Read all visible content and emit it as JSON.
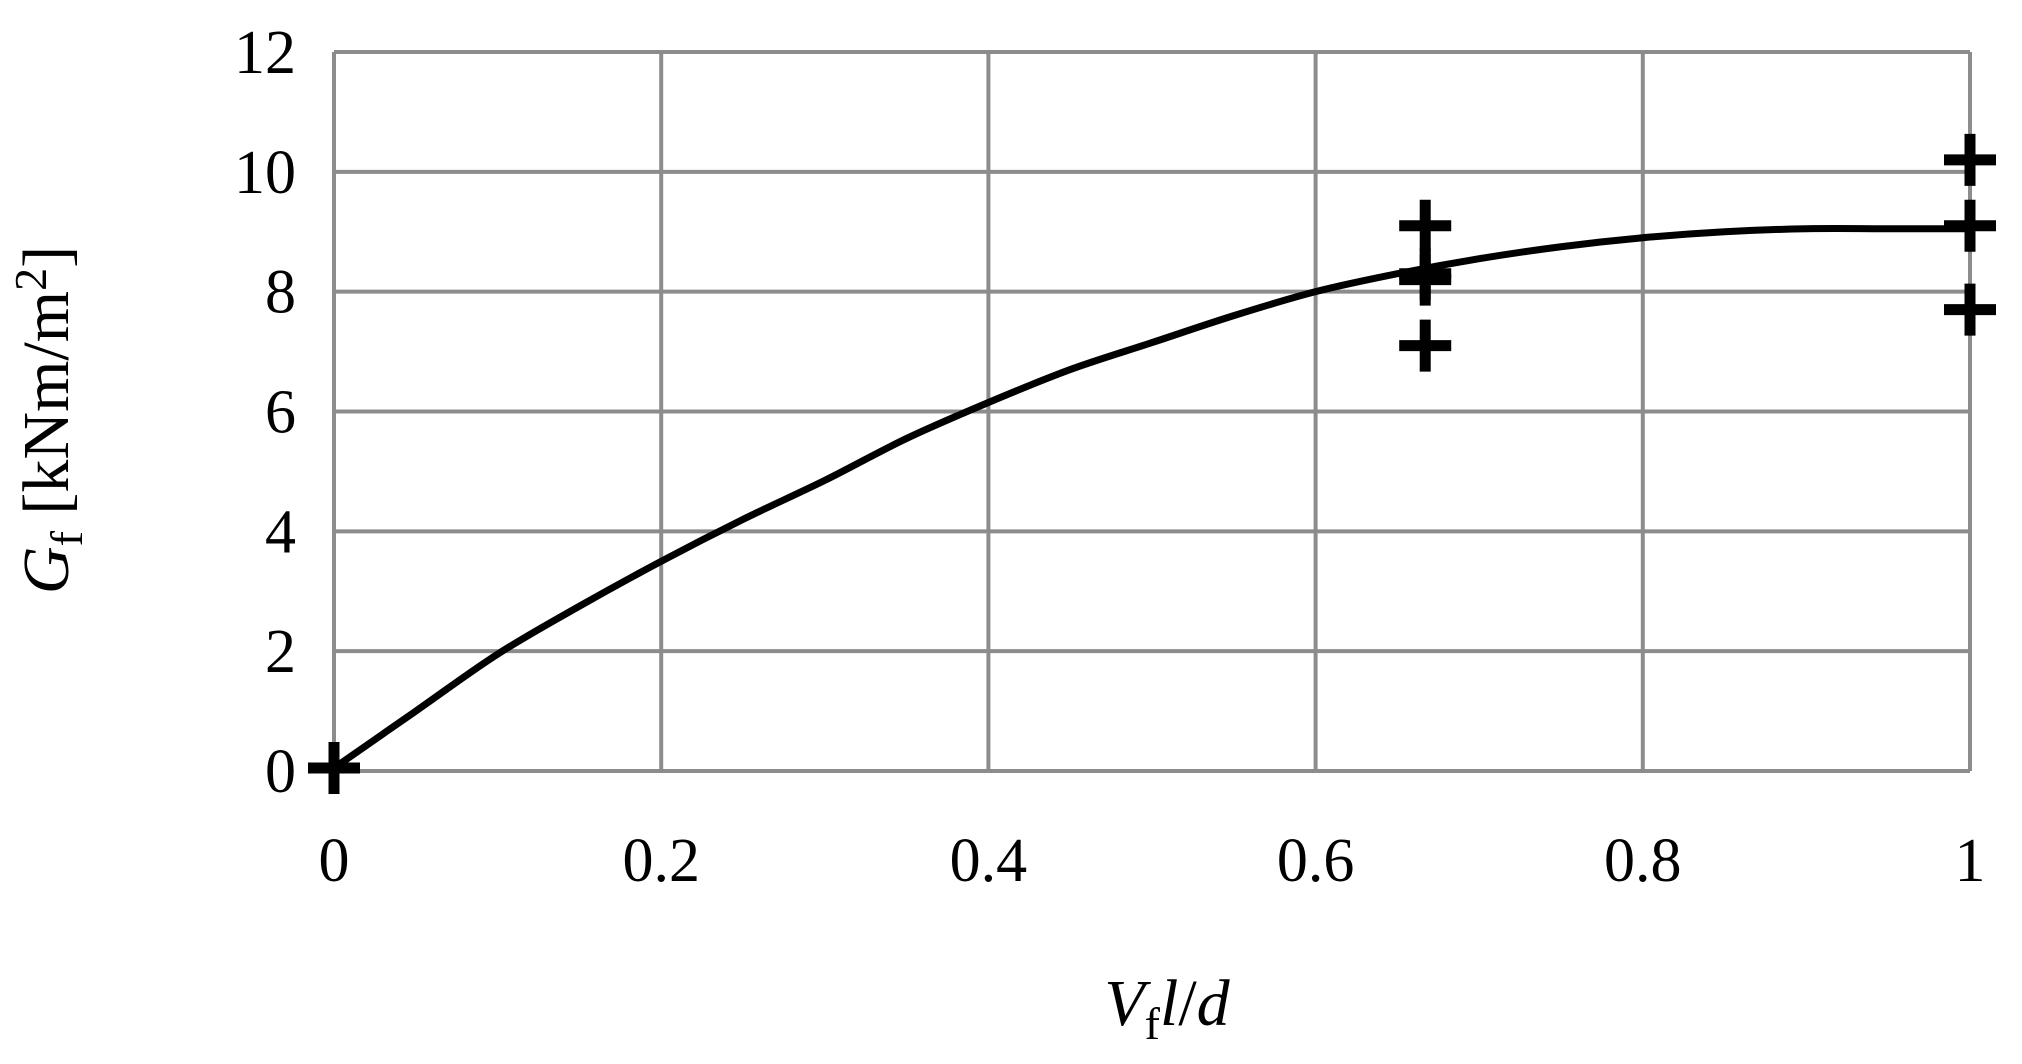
{
  "chart_data": {
    "type": "scatter",
    "title": "",
    "xlabel": {
      "prefix_italic": "V",
      "subscript": "f",
      "suffix_italic": "l",
      "slash": "/",
      "tail_italic": "d"
    },
    "ylabel": {
      "prefix_italic": "G",
      "subscript": "f",
      "unit_text": " [kNm/m",
      "unit_sup": "2",
      "unit_close": "]"
    },
    "xlim": [
      0,
      1
    ],
    "ylim": [
      0,
      12
    ],
    "x_ticks": [
      0,
      0.2,
      0.4,
      0.6,
      0.8,
      1
    ],
    "x_tick_labels": [
      "0",
      "0.2",
      "0.4",
      "0.6",
      "0.8",
      "1"
    ],
    "y_ticks": [
      0,
      2,
      4,
      6,
      8,
      10,
      12
    ],
    "y_tick_labels": [
      "0",
      "2",
      "4",
      "6",
      "8",
      "10",
      "12"
    ],
    "grid": true,
    "legend": "none",
    "series": [
      {
        "type": "scatter",
        "marker": "plus",
        "color": "#000000",
        "points": [
          {
            "x": 0,
            "y": 0.05
          },
          {
            "x": 0.667,
            "y": 9.1
          },
          {
            "x": 0.667,
            "y": 8.3
          },
          {
            "x": 0.667,
            "y": 8.2
          },
          {
            "x": 0.667,
            "y": 7.1
          },
          {
            "x": 1,
            "y": 10.2
          },
          {
            "x": 1,
            "y": 9.1
          },
          {
            "x": 1,
            "y": 7.7
          }
        ]
      },
      {
        "type": "line",
        "color": "#000000",
        "x": [
          0,
          0.05,
          0.1,
          0.15,
          0.2,
          0.25,
          0.3,
          0.35,
          0.4,
          0.45,
          0.5,
          0.55,
          0.6,
          0.65,
          0.7,
          0.75,
          0.8,
          0.85,
          0.9,
          0.95,
          1
        ],
        "y": [
          0.05,
          1.0,
          1.95,
          2.75,
          3.5,
          4.2,
          4.85,
          5.55,
          6.15,
          6.7,
          7.15,
          7.6,
          8.0,
          8.3,
          8.55,
          8.75,
          8.9,
          9.0,
          9.05,
          9.05,
          9.05
        ]
      }
    ],
    "colors": {
      "grid": "#8c8c8c",
      "axis_text": "#000000",
      "data": "#000000"
    }
  }
}
